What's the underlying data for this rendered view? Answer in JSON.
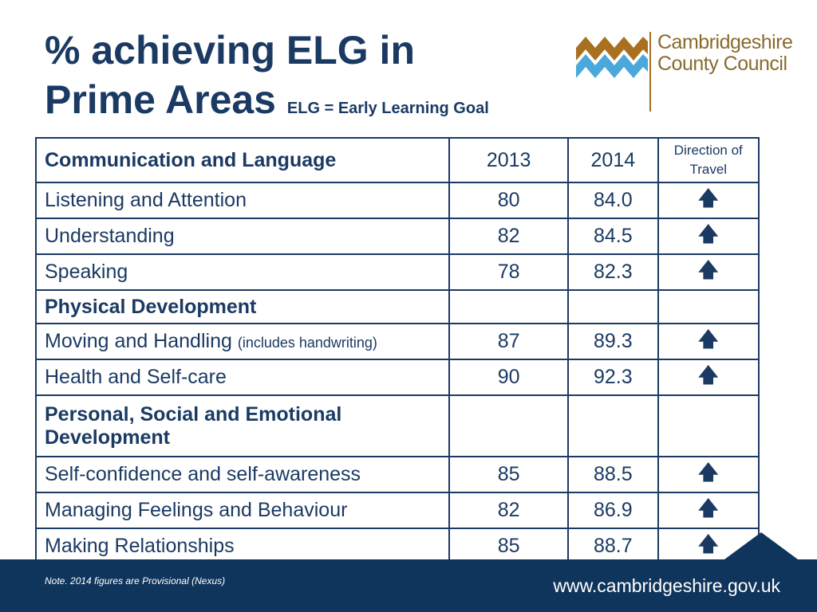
{
  "header": {
    "title_line1": "% achieving ELG in",
    "title_line2": "Prime Areas",
    "subtitle": "ELG = Early Learning Goal"
  },
  "logo": {
    "line1": "Cambridgeshire",
    "line2": "County Council",
    "colors": {
      "wave_top": "#a8701f",
      "wave_bottom": "#4aa8db",
      "text": "#8a6a2c"
    }
  },
  "table": {
    "header": {
      "section": "Communication and Language",
      "col_2013": "2013",
      "col_2014": "2014",
      "col_dir_line1": "Direction of",
      "col_dir_line2": "Travel"
    },
    "rows": [
      {
        "label": "Listening and Attention",
        "y2013": "80",
        "y2014": "84.0",
        "dir": "🡅"
      },
      {
        "label": "Understanding",
        "y2013": "82",
        "y2014": "84.5",
        "dir": "🡅"
      },
      {
        "label": "Speaking",
        "y2013": "78",
        "y2014": "82.3",
        "dir": "🡅"
      },
      {
        "group": "Physical Development"
      },
      {
        "label": "Moving and Handling",
        "note": "(includes handwriting)",
        "y2013": "87",
        "y2014": "89.3",
        "dir": "🡅"
      },
      {
        "label": "Health and Self-care",
        "y2013": "90",
        "y2014": "92.3",
        "dir": "🡅"
      },
      {
        "group_line1": "Personal, Social and Emotional",
        "group_line2": "Development"
      },
      {
        "label": "Self-confidence and self-awareness",
        "y2013": "85",
        "y2014": "88.5",
        "dir": "🡅"
      },
      {
        "label": "Managing Feelings and Behaviour",
        "y2013": "82",
        "y2014": "86.9",
        "dir": "🡅"
      },
      {
        "label": "Making Relationships",
        "y2013": "85",
        "y2014": "88.7",
        "dir": "🡅"
      }
    ]
  },
  "footer": {
    "note": "Note. 2014 figures are Provisional (Nexus)",
    "url": "www.cambridgeshire.gov.uk"
  },
  "colors": {
    "primary": "#1b3a63",
    "footer_bg": "#10355c"
  }
}
